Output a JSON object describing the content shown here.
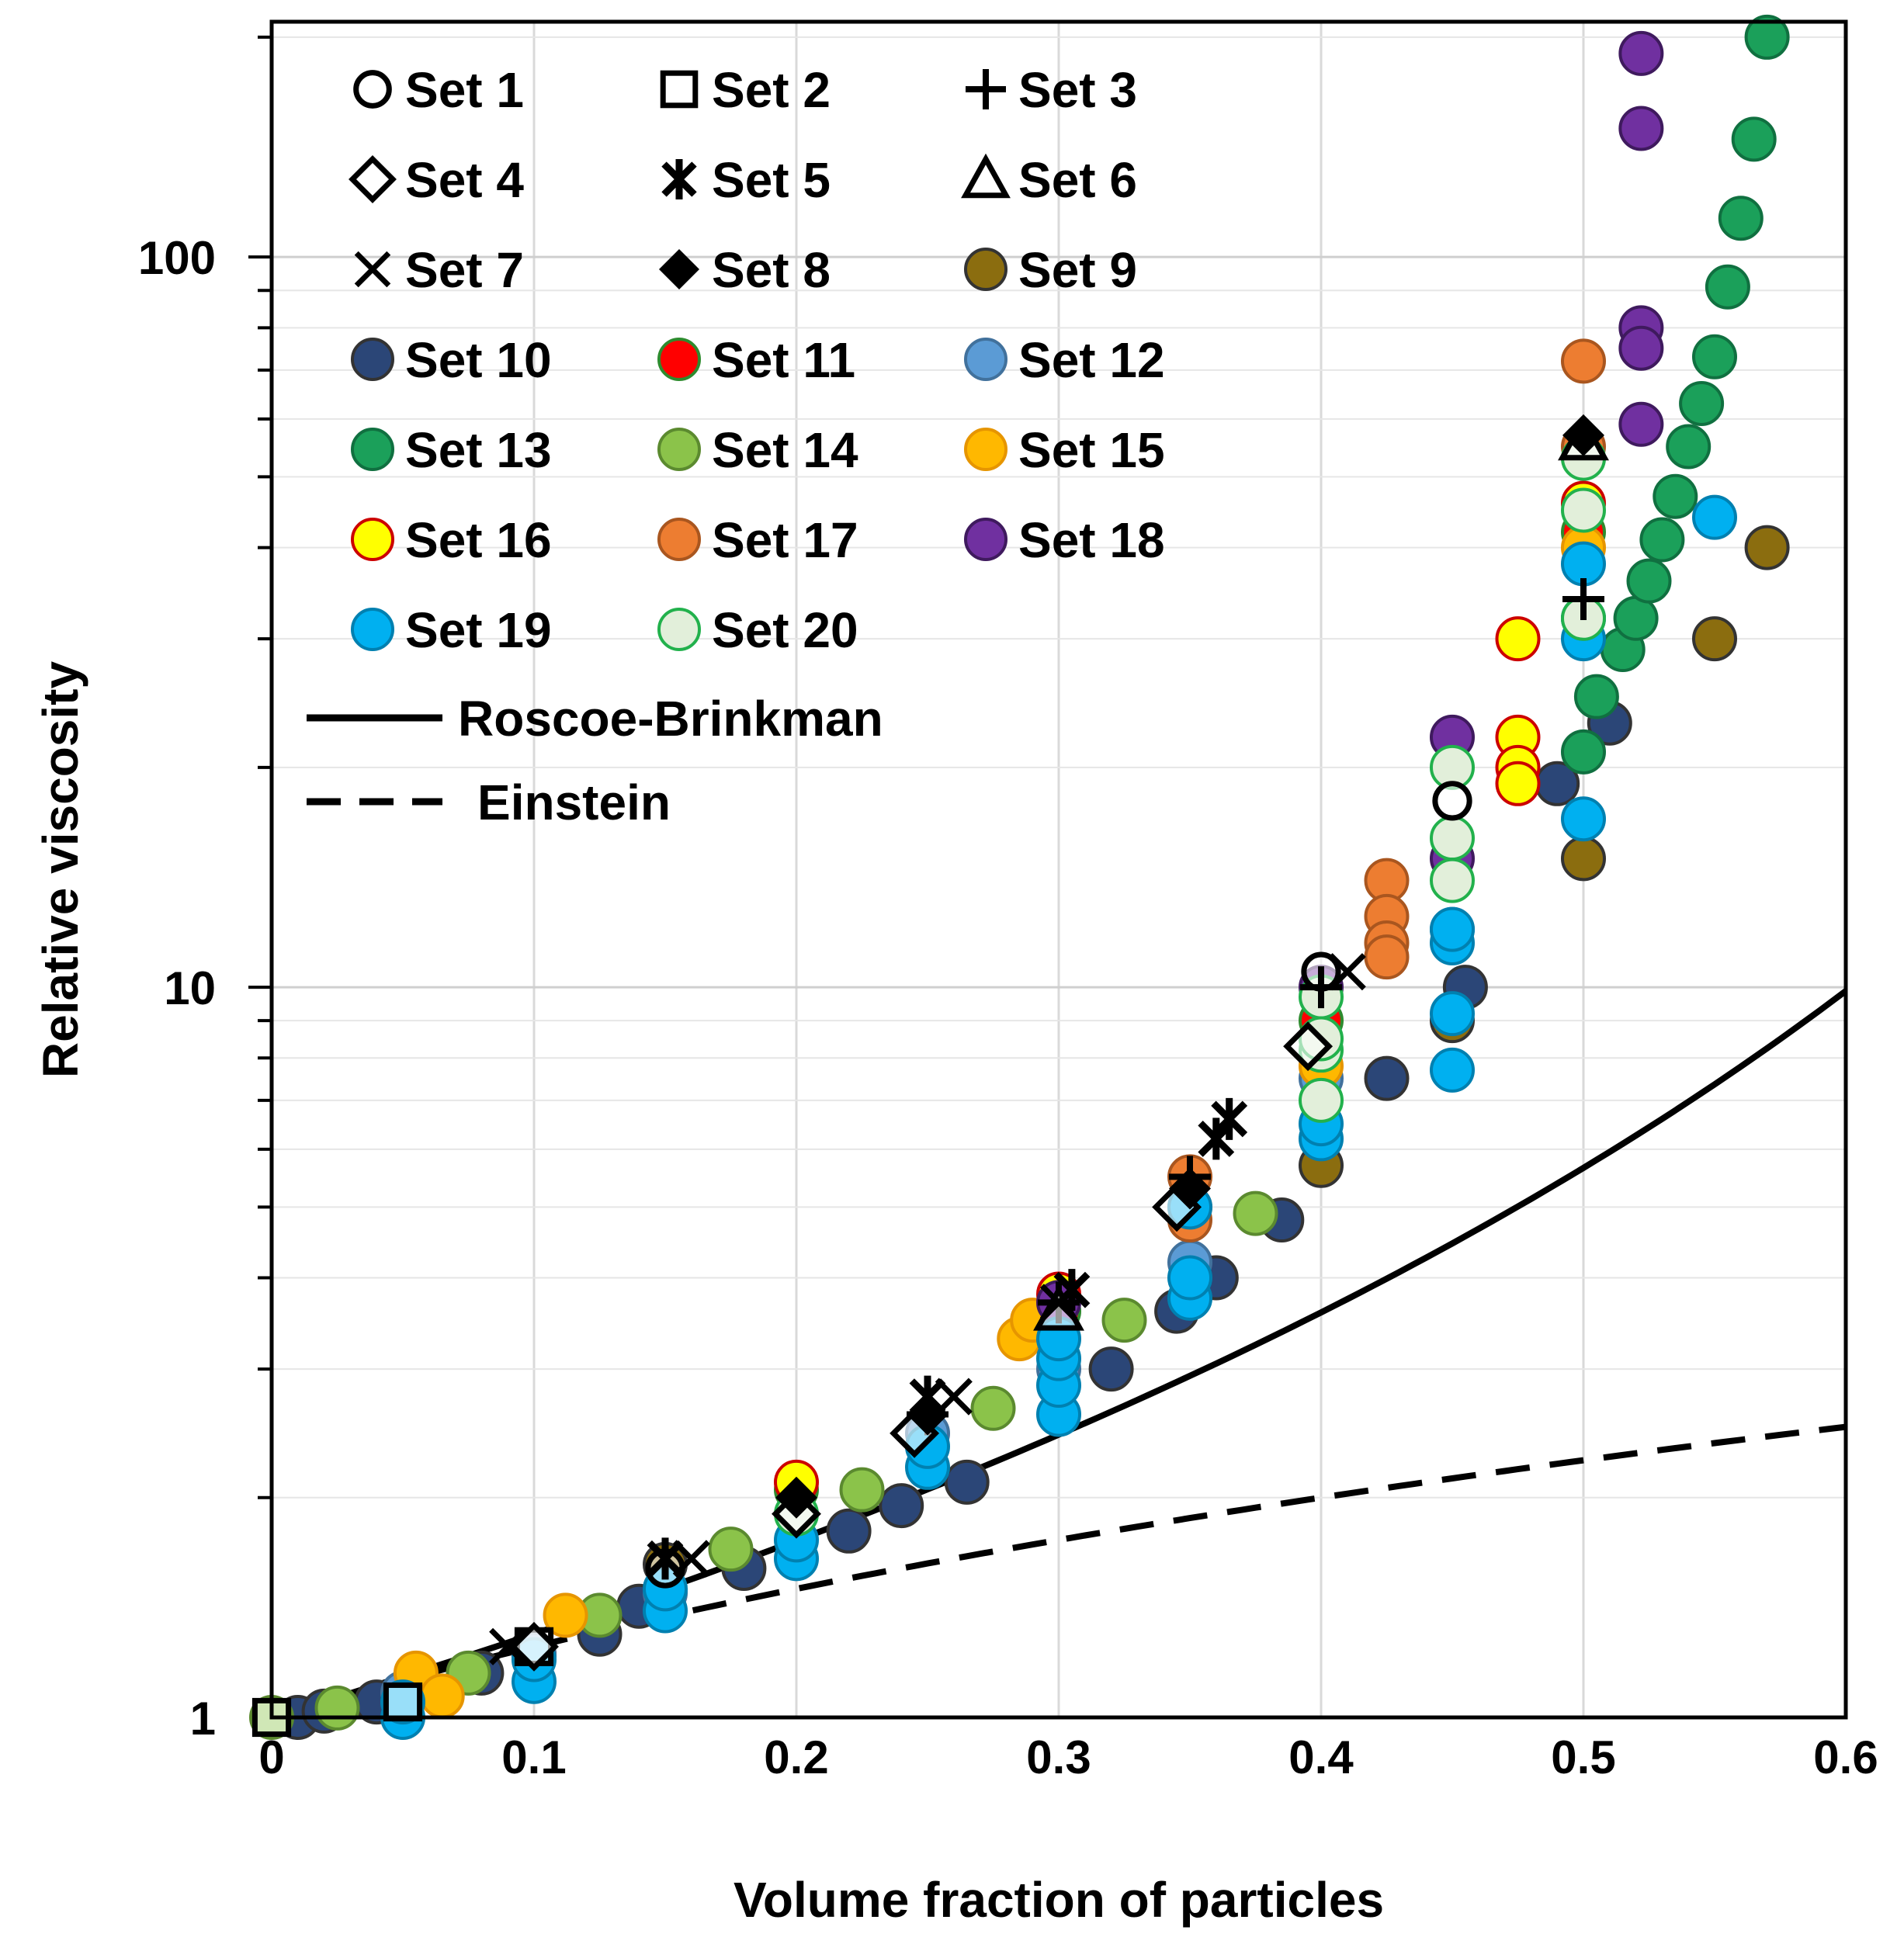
{
  "chart_data": {
    "type": "scatter",
    "title": "",
    "xlabel": "Volume fraction of particles",
    "ylabel": "Relative viscosity",
    "xlim": [
      0,
      0.6
    ],
    "ylim": [
      1,
      210
    ],
    "yscale": "log",
    "grid": true,
    "legend_position": "top-left",
    "x_ticks": [
      "0",
      "0.1",
      "0.2",
      "0.3",
      "0.4",
      "0.5",
      "0.6"
    ],
    "y_ticks": [
      "1",
      "10",
      "100"
    ],
    "series": [
      {
        "name": "Set 1",
        "marker": "open-circle",
        "color": "#000000",
        "points": [
          [
            0.15,
            1.6
          ],
          [
            0.4,
            10.5
          ],
          [
            0.45,
            18
          ]
        ]
      },
      {
        "name": "Set 2",
        "marker": "open-square",
        "color": "#000000",
        "points": [
          [
            0,
            1.0
          ],
          [
            0.05,
            1.05
          ],
          [
            0.1,
            1.25
          ]
        ]
      },
      {
        "name": "Set 3",
        "marker": "plus",
        "color": "#000000",
        "points": [
          [
            0.25,
            2.6
          ],
          [
            0.3,
            3.7
          ],
          [
            0.35,
            5.5
          ],
          [
            0.4,
            10
          ],
          [
            0.5,
            34
          ]
        ]
      },
      {
        "name": "Set 4",
        "marker": "open-diamond",
        "color": "#000000",
        "points": [
          [
            0.1,
            1.25
          ],
          [
            0.2,
            1.9
          ],
          [
            0.245,
            2.45
          ],
          [
            0.345,
            5.0
          ],
          [
            0.395,
            8.3
          ]
        ]
      },
      {
        "name": "Set 5",
        "marker": "asterisk",
        "color": "#000000",
        "points": [
          [
            0.15,
            1.65
          ],
          [
            0.25,
            2.75
          ],
          [
            0.305,
            3.85
          ],
          [
            0.36,
            6.2
          ],
          [
            0.365,
            6.6
          ]
        ]
      },
      {
        "name": "Set 6",
        "marker": "open-triangle",
        "color": "#000000",
        "points": [
          [
            0.3,
            3.6
          ],
          [
            0.5,
            56
          ]
        ]
      },
      {
        "name": "Set 7",
        "marker": "x",
        "color": "#000000",
        "points": [
          [
            0.09,
            1.25
          ],
          [
            0.16,
            1.65
          ],
          [
            0.26,
            2.75
          ],
          [
            0.3,
            3.7
          ],
          [
            0.41,
            10.5
          ]
        ]
      },
      {
        "name": "Set 8",
        "marker": "filled-diamond",
        "color": "#000000",
        "points": [
          [
            0.2,
            2.0
          ],
          [
            0.25,
            2.6
          ],
          [
            0.35,
            5.3
          ],
          [
            0.5,
            57
          ]
        ]
      },
      {
        "name": "Set 9",
        "marker": "circle",
        "color": "#8B6D0F",
        "points": [
          [
            0.15,
            1.62
          ],
          [
            0.4,
            5.7
          ],
          [
            0.45,
            9.0
          ],
          [
            0.5,
            15
          ],
          [
            0.55,
            30
          ],
          [
            0.57,
            40
          ]
        ]
      },
      {
        "name": "Set 10",
        "marker": "circle",
        "color": "#2B4677",
        "points": [
          [
            0.01,
            1.0
          ],
          [
            0.02,
            1.02
          ],
          [
            0.04,
            1.05
          ],
          [
            0.08,
            1.15
          ],
          [
            0.1,
            1.22
          ],
          [
            0.125,
            1.3
          ],
          [
            0.14,
            1.42
          ],
          [
            0.18,
            1.6
          ],
          [
            0.22,
            1.8
          ],
          [
            0.24,
            1.95
          ],
          [
            0.265,
            2.1
          ],
          [
            0.32,
            3.0
          ],
          [
            0.345,
            3.6
          ],
          [
            0.36,
            4.0
          ],
          [
            0.385,
            4.8
          ],
          [
            0.425,
            7.5
          ],
          [
            0.455,
            10
          ],
          [
            0.49,
            19
          ],
          [
            0.51,
            23
          ]
        ]
      },
      {
        "name": "Set 11",
        "marker": "circle",
        "color": "#FF0000",
        "edge": "#2E8B2E",
        "points": [
          [
            0.2,
            2.05
          ],
          [
            0.3,
            3.6
          ],
          [
            0.4,
            9.0
          ],
          [
            0.5,
            42
          ]
        ]
      },
      {
        "name": "Set 12",
        "marker": "circle",
        "color": "#5B9BD5",
        "edge": "#41719C",
        "points": [
          [
            0.05,
            1.08
          ],
          [
            0.1,
            1.22
          ],
          [
            0.15,
            1.48
          ],
          [
            0.25,
            2.45
          ],
          [
            0.3,
            3.0
          ],
          [
            0.35,
            4.2
          ],
          [
            0.4,
            7.5
          ],
          [
            0.45,
            12
          ],
          [
            0.5,
            32
          ]
        ]
      },
      {
        "name": "Set 13",
        "marker": "circle",
        "color": "#1BA05A",
        "edge": "#107040",
        "points": [
          [
            0.5,
            21
          ],
          [
            0.505,
            25
          ],
          [
            0.515,
            29
          ],
          [
            0.52,
            32
          ],
          [
            0.525,
            36
          ],
          [
            0.53,
            41
          ],
          [
            0.535,
            47
          ],
          [
            0.54,
            55
          ],
          [
            0.545,
            63
          ],
          [
            0.55,
            73
          ],
          [
            0.555,
            91
          ],
          [
            0.56,
            113
          ],
          [
            0.565,
            145
          ],
          [
            0.57,
            200
          ]
        ]
      },
      {
        "name": "Set 14",
        "marker": "circle",
        "color": "#8BC34A",
        "edge": "#5B8A2F",
        "points": [
          [
            0.0,
            1.0
          ],
          [
            0.025,
            1.03
          ],
          [
            0.075,
            1.15
          ],
          [
            0.125,
            1.38
          ],
          [
            0.175,
            1.7
          ],
          [
            0.225,
            2.05
          ],
          [
            0.275,
            2.65
          ],
          [
            0.325,
            3.5
          ],
          [
            0.375,
            4.9
          ]
        ]
      },
      {
        "name": "Set 15",
        "marker": "circle",
        "color": "#FFB800",
        "edge": "#E69500",
        "points": [
          [
            0.055,
            1.15
          ],
          [
            0.065,
            1.07
          ],
          [
            0.112,
            1.38
          ],
          [
            0.285,
            3.3
          ],
          [
            0.29,
            3.5
          ],
          [
            0.4,
            7.8
          ],
          [
            0.5,
            40
          ]
        ]
      },
      {
        "name": "Set 16",
        "marker": "circle",
        "color": "#FFFF00",
        "edge": "#CC0000",
        "points": [
          [
            0.2,
            2.1
          ],
          [
            0.3,
            3.8
          ],
          [
            0.475,
            30
          ],
          [
            0.475,
            22
          ],
          [
            0.475,
            20
          ],
          [
            0.475,
            19
          ],
          [
            0.5,
            46
          ]
        ]
      },
      {
        "name": "Set 17",
        "marker": "circle",
        "color": "#ED7D31",
        "edge": "#A9561F",
        "points": [
          [
            0.35,
            5.5
          ],
          [
            0.35,
            5.0
          ],
          [
            0.35,
            4.8
          ],
          [
            0.425,
            14
          ],
          [
            0.425,
            12.5
          ],
          [
            0.425,
            11.5
          ],
          [
            0.425,
            11
          ],
          [
            0.5,
            72
          ],
          [
            0.5,
            55
          ]
        ]
      },
      {
        "name": "Set 18",
        "marker": "circle",
        "color": "#7030A0",
        "edge": "#3F1A5E",
        "points": [
          [
            0.3,
            3.7
          ],
          [
            0.4,
            10
          ],
          [
            0.45,
            22
          ],
          [
            0.45,
            15
          ],
          [
            0.522,
            190
          ],
          [
            0.522,
            150
          ],
          [
            0.522,
            80
          ],
          [
            0.522,
            75
          ],
          [
            0.522,
            59
          ]
        ]
      },
      {
        "name": "Set 19",
        "marker": "circle",
        "color": "#00B0F0",
        "edge": "#0080B0",
        "points": [
          [
            0.05,
            1.0
          ],
          [
            0.05,
            1.05
          ],
          [
            0.1,
            1.12
          ],
          [
            0.1,
            1.2
          ],
          [
            0.15,
            1.4
          ],
          [
            0.15,
            1.5
          ],
          [
            0.2,
            1.65
          ],
          [
            0.2,
            1.75
          ],
          [
            0.25,
            2.2
          ],
          [
            0.25,
            2.35
          ],
          [
            0.3,
            2.6
          ],
          [
            0.3,
            2.85
          ],
          [
            0.3,
            3.1
          ],
          [
            0.3,
            3.3
          ],
          [
            0.35,
            3.75
          ],
          [
            0.35,
            4.0
          ],
          [
            0.35,
            5.0
          ],
          [
            0.4,
            6.2
          ],
          [
            0.4,
            6.5
          ],
          [
            0.45,
            7.7
          ],
          [
            0.45,
            9.2
          ],
          [
            0.45,
            11.5
          ],
          [
            0.45,
            12
          ],
          [
            0.5,
            17
          ],
          [
            0.5,
            30
          ],
          [
            0.5,
            32
          ],
          [
            0.5,
            38
          ],
          [
            0.55,
            44
          ]
        ]
      },
      {
        "name": "Set 20",
        "marker": "circle",
        "color": "#E2EFDA",
        "edge": "#22B14C",
        "points": [
          [
            0.2,
            1.9
          ],
          [
            0.4,
            7.0
          ],
          [
            0.4,
            8.2
          ],
          [
            0.4,
            8.5
          ],
          [
            0.4,
            9.7
          ],
          [
            0.45,
            14
          ],
          [
            0.45,
            16
          ],
          [
            0.45,
            20
          ],
          [
            0.5,
            32
          ],
          [
            0.5,
            45
          ],
          [
            0.5,
            53
          ]
        ]
      }
    ],
    "lines": [
      {
        "name": "Roscoe-Brinkman",
        "style": "solid",
        "formula": "(1-phi)^(-2.5)",
        "color": "#000000"
      },
      {
        "name": "Einstein",
        "style": "dashed",
        "formula": "1+2.5*phi",
        "color": "#000000"
      }
    ]
  }
}
